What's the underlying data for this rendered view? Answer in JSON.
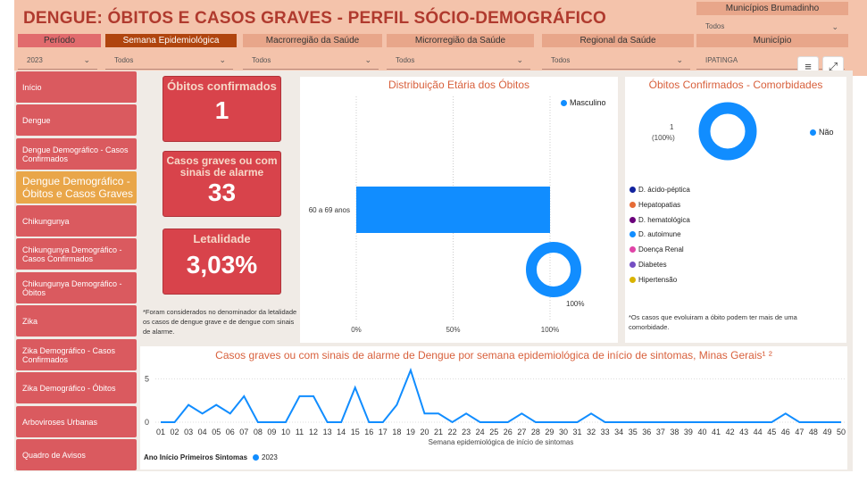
{
  "header": {
    "title": "DENGUE: ÓBITOS E CASOS GRAVES - PERFIL SÓCIO-DEMOGRÁFICO",
    "color": "#f4c3ab"
  },
  "filters": [
    {
      "label": "Período",
      "value": "2023",
      "label_bg": "#e16b6d"
    },
    {
      "label": "Semana Epidemiológica",
      "value": "Todos",
      "label_bg": "#b0450e"
    },
    {
      "label": "Macrorregião da Saúde",
      "value": "Todos",
      "label_bg": "#e8a68a"
    },
    {
      "label": "Microrregião da Saúde",
      "value": "Todos",
      "label_bg": "#e8a68a"
    },
    {
      "label": "Regional da Saúde",
      "value": "Todos",
      "label_bg": "#e8a68a"
    },
    {
      "label": "Município",
      "value": "IPATINGA",
      "label_bg": "#e8a68a"
    }
  ],
  "municipios_brumadinho": {
    "label": "Municípios Brumadinho",
    "value": "Todos"
  },
  "icons": {
    "filter": "filter-icon",
    "expand": "expand-icon"
  },
  "nav": [
    "Início",
    "Dengue",
    "Dengue Demográfico - Casos Confirmados",
    "Dengue Demográfico - Óbitos e Casos Graves",
    "Chikungunya",
    "Chikungunya Demográfico - Casos Confirmados",
    "Chikungunya Demográfico - Óbitos",
    "Zika",
    "Zika Demográfico - Casos Confirmados",
    "Zika Demográfico - Óbitos",
    "Arboviroses Urbanas",
    "Quadro de Avisos"
  ],
  "kpis": {
    "obitos": {
      "label": "Óbitos confirmados",
      "value": "1"
    },
    "casos_graves": {
      "label": "Casos graves ou com sinais de alarme",
      "value": "33"
    },
    "letalidade": {
      "label": "Letalidade",
      "value": "3,03%"
    }
  },
  "note_left": "*Foram considerados no denominador da letalidade os casos de dengue grave e de dengue com sinais de alarme.",
  "note_right": "*Os casos que evoluiram a óbito podem ter mais de uma comorbidade.",
  "age_chart": {
    "title": "Distribuição Etária dos Óbitos",
    "legend": "Masculino",
    "category": "60 a 69 anos",
    "value_pct": 100,
    "ticks": [
      "0%",
      "50%",
      "100%"
    ],
    "donut_label": "100%",
    "color": "#118dff"
  },
  "comorb_chart": {
    "title": "Óbitos Confirmados - Comorbidades",
    "donut_value": "1",
    "donut_pct": "(100%)",
    "legend": "Não",
    "items": [
      {
        "label": "D. ácido-péptica",
        "color": "#12239e"
      },
      {
        "label": "Hepatopatias",
        "color": "#e66c37"
      },
      {
        "label": "D. hematológica",
        "color": "#6b007b"
      },
      {
        "label": "D. autoimune",
        "color": "#118dff"
      },
      {
        "label": "Doença Renal",
        "color": "#e044a7"
      },
      {
        "label": "Diabetes",
        "color": "#744ec2"
      },
      {
        "label": "Hipertensão",
        "color": "#d9b300"
      }
    ]
  },
  "chart_data": {
    "type": "line",
    "title": "Casos graves ou com sinais de alarme de Dengue por semana epidemiológica de início de sintomas, Minas Gerais¹ ²",
    "xlabel": "Semana epidemiológica de início de sintomas",
    "ylabel": "",
    "x": [
      "01",
      "02",
      "03",
      "04",
      "05",
      "06",
      "07",
      "08",
      "09",
      "10",
      "11",
      "12",
      "13",
      "14",
      "15",
      "16",
      "17",
      "18",
      "19",
      "20",
      "21",
      "22",
      "23",
      "24",
      "25",
      "26",
      "27",
      "28",
      "29",
      "30",
      "31",
      "32",
      "33",
      "34",
      "35",
      "36",
      "37",
      "38",
      "39",
      "40",
      "41",
      "42",
      "43",
      "44",
      "45",
      "46",
      "47",
      "48",
      "49",
      "50"
    ],
    "series": [
      {
        "name": "2023",
        "color": "#118dff",
        "values": [
          0,
          0,
          2,
          1,
          2,
          1,
          3,
          0,
          0,
          0,
          3,
          3,
          0,
          0,
          4,
          0,
          0,
          2,
          6,
          1,
          1,
          0,
          1,
          0,
          0,
          0,
          1,
          0,
          0,
          0,
          0,
          1,
          0,
          0,
          0,
          0,
          0,
          0,
          0,
          0,
          0,
          0,
          0,
          0,
          0,
          1,
          0,
          0,
          0,
          0
        ]
      }
    ],
    "yticks": [
      0,
      5
    ],
    "ylim": [
      0,
      6.5
    ],
    "legend_title": "Ano Início Primeiros Sintomas"
  }
}
